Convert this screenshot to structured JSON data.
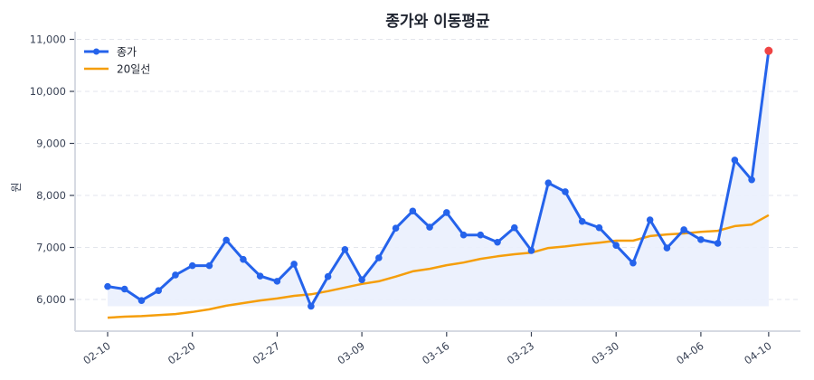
{
  "chart_data": {
    "type": "line",
    "title": "종가와 이동평균",
    "xlabel": "",
    "ylabel": "원",
    "ylim": [
      5450,
      11150
    ],
    "yticks": [
      6000,
      7000,
      8000,
      9000,
      10000,
      11000
    ],
    "ytick_labels": [
      "6,000",
      "7,000",
      "8,000",
      "9,000",
      "10,000",
      "11,000"
    ],
    "xtick_labels": [
      "02-10",
      "02-20",
      "02-27",
      "03-09",
      "03-16",
      "03-23",
      "03-30",
      "04-06",
      "04-10"
    ],
    "xtick_indices": [
      0,
      5,
      10,
      15,
      20,
      25,
      30,
      35,
      39
    ],
    "grid": true,
    "legend_position": "upper left",
    "x": [
      0,
      1,
      2,
      3,
      4,
      5,
      6,
      7,
      8,
      9,
      10,
      11,
      12,
      13,
      14,
      15,
      16,
      17,
      18,
      19,
      20,
      21,
      22,
      23,
      24,
      25,
      26,
      27,
      28,
      29,
      30,
      31,
      32,
      33,
      34,
      35,
      36,
      37,
      38,
      39
    ],
    "series": [
      {
        "name": "종가",
        "color": "#2563eb",
        "marker": "circle",
        "fill": true,
        "values": [
          6250,
          6200,
          5980,
          6170,
          6470,
          6650,
          6650,
          7140,
          6770,
          6450,
          6350,
          6680,
          5870,
          6440,
          6960,
          6380,
          6800,
          7370,
          7700,
          7390,
          7670,
          7240,
          7240,
          7100,
          7380,
          6940,
          8240,
          8070,
          7500,
          7380,
          7040,
          6700,
          7530,
          6990,
          7340,
          7150,
          7080,
          8680,
          8300,
          10780
        ],
        "last_point_color": "#ef4444"
      },
      {
        "name": "20일선",
        "color": "#f59e0b",
        "marker": "none",
        "values": [
          5650,
          5670,
          5680,
          5700,
          5720,
          5760,
          5810,
          5880,
          5930,
          5980,
          6020,
          6070,
          6100,
          6160,
          6230,
          6300,
          6350,
          6440,
          6540,
          6590,
          6660,
          6710,
          6780,
          6830,
          6870,
          6900,
          6990,
          7020,
          7060,
          7090,
          7130,
          7130,
          7220,
          7250,
          7270,
          7300,
          7320,
          7410,
          7440,
          7620
        ]
      }
    ]
  },
  "legend": {
    "items": [
      {
        "label": "종가",
        "color": "#2563eb"
      },
      {
        "label": "20일선",
        "color": "#f59e0b"
      }
    ]
  },
  "colors": {
    "close": "#2563eb",
    "ma": "#f59e0b",
    "fill": "#eaf0fd",
    "highlight": "#ef4444"
  }
}
